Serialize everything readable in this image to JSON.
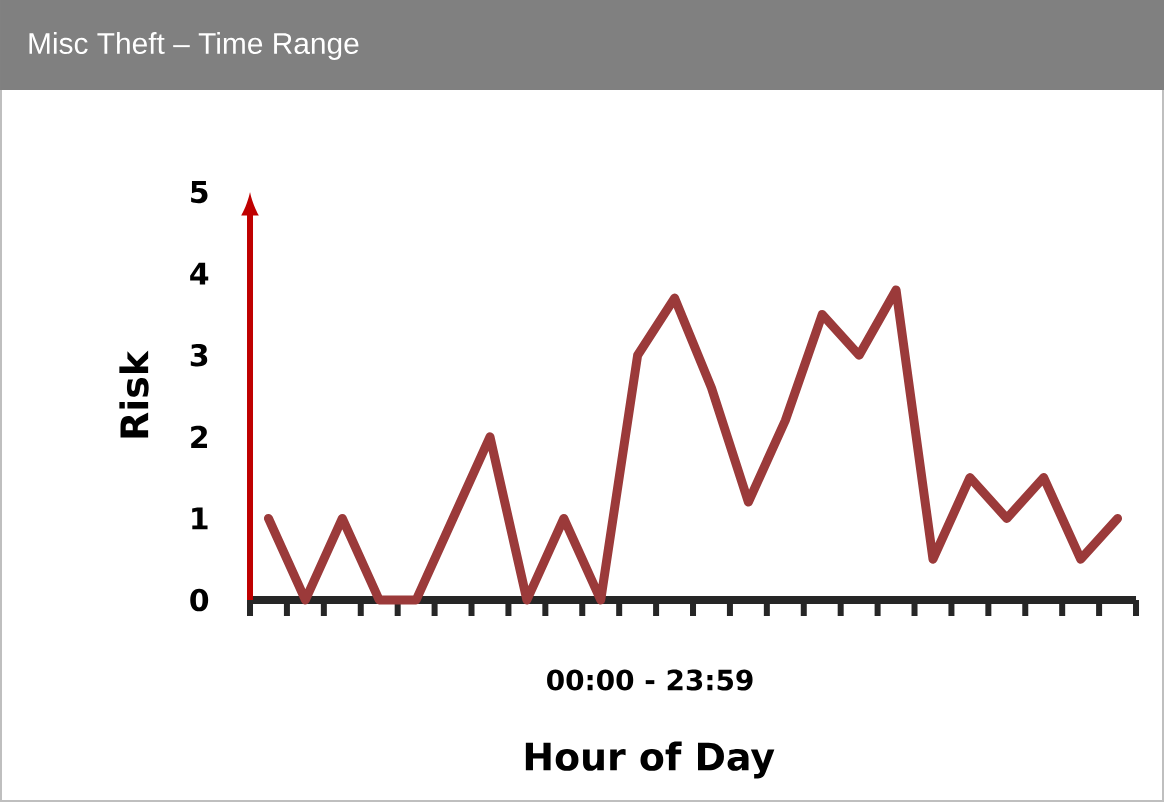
{
  "chart_data": {
    "type": "line",
    "title": "Misc Theft – Time Range",
    "xlabel": "Hour of Day",
    "ylabel": "Risk",
    "annotations": [
      "00:00 - 23:59"
    ],
    "categories": [
      null,
      null,
      null,
      null,
      null,
      null,
      null,
      null,
      null,
      null,
      null,
      null,
      null,
      null,
      null,
      null,
      null,
      null,
      null,
      null,
      null,
      null,
      null,
      null
    ],
    "series": [
      {
        "color": "#9b3a3a",
        "values": [
          1,
          0,
          1,
          0,
          0,
          1,
          2,
          0,
          1,
          0,
          3,
          3.7,
          2.6,
          1.2,
          2.2,
          3.5,
          3.0,
          3.8,
          0.5,
          1.5,
          1.0,
          1.5,
          0.5,
          1.0
        ]
      }
    ],
    "ylim": [
      0,
      5
    ],
    "yticks": [
      0,
      1,
      2,
      3,
      4,
      5
    ],
    "tick_labels": "y",
    "marker": "none",
    "line_style": "solid",
    "grid": false
  }
}
